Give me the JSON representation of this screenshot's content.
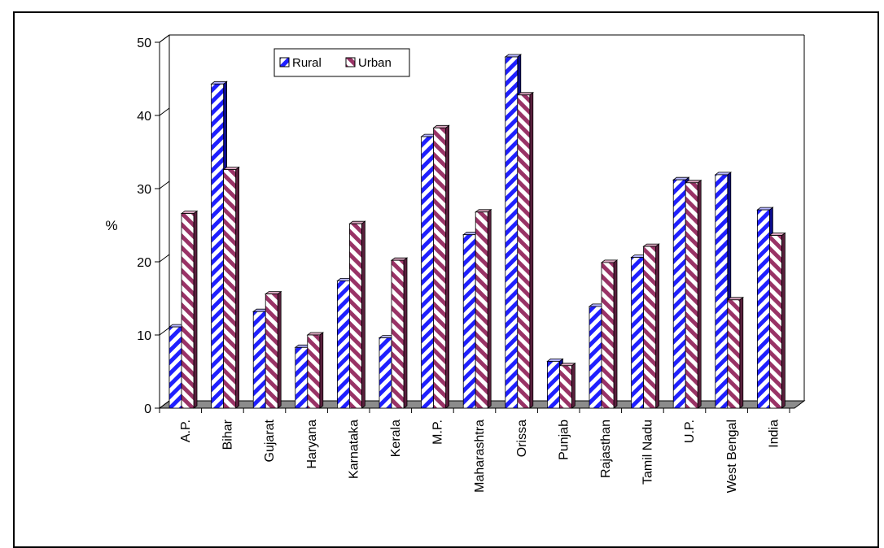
{
  "chart_data": {
    "type": "bar",
    "title": "",
    "xlabel": "",
    "ylabel": "%",
    "ylim": [
      0,
      50
    ],
    "yticks": [
      0,
      10,
      20,
      30,
      40,
      50
    ],
    "grid": false,
    "legend_position": "top-center",
    "categories": [
      "A.P.",
      "Bihar",
      "Gujarat",
      "Haryana",
      "Karnataka",
      "Kerala",
      "M.P.",
      "Maharashtra",
      "Orissa",
      "Punjab",
      "Rajasthan",
      "Tamil Nadu",
      "U.P.",
      "West Bengal",
      "India"
    ],
    "series": [
      {
        "name": "Rural",
        "color": "#1f1fff",
        "values": [
          11.1,
          44.3,
          13.2,
          8.3,
          17.4,
          9.6,
          37.1,
          23.7,
          48.0,
          6.4,
          13.9,
          20.6,
          31.2,
          31.9,
          27.1
        ]
      },
      {
        "name": "Urban",
        "color": "#993366",
        "values": [
          26.6,
          32.6,
          15.6,
          10.0,
          25.2,
          20.2,
          38.3,
          26.8,
          42.8,
          5.8,
          19.9,
          22.1,
          30.8,
          14.8,
          23.6
        ]
      }
    ]
  }
}
